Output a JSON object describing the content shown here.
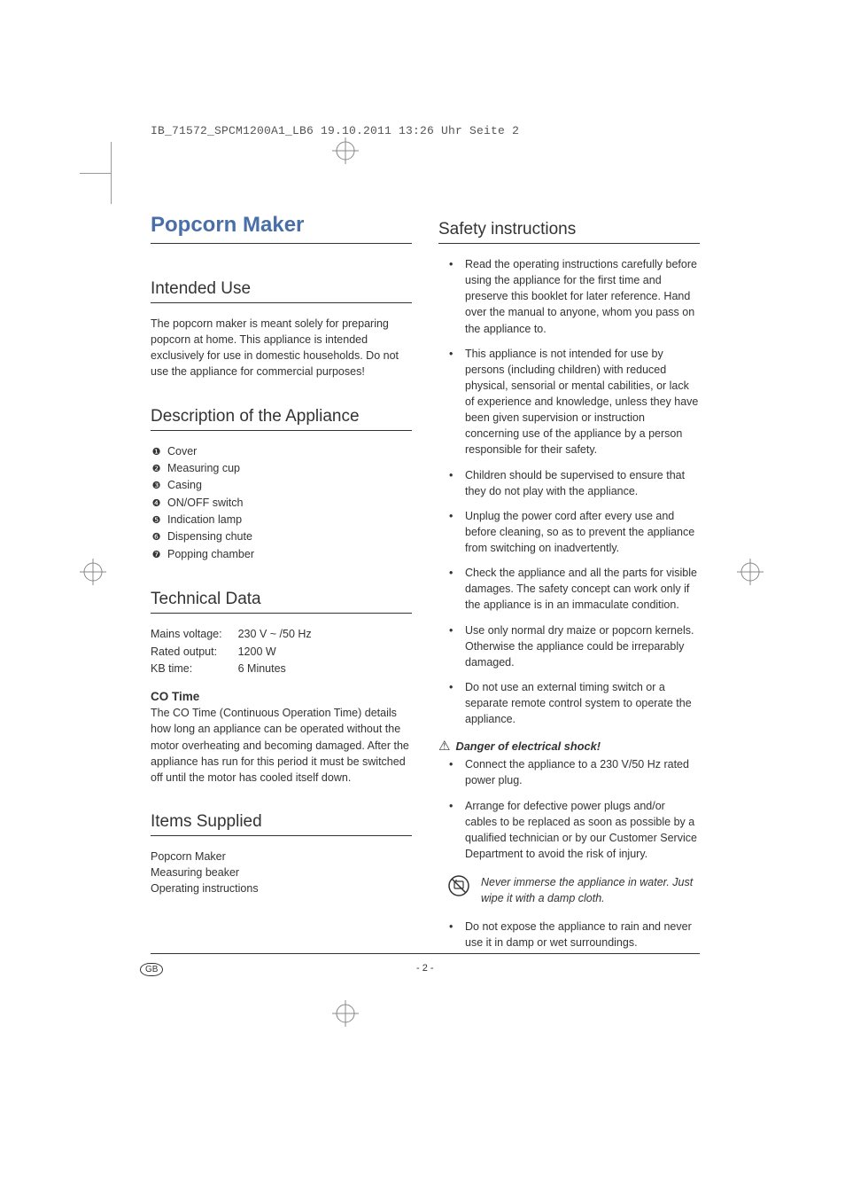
{
  "header_line": "IB_71572_SPCM1200A1_LB6  19.10.2011  13:26 Uhr  Seite 2",
  "title": "Popcorn Maker",
  "left": {
    "intended_use": {
      "heading": "Intended Use",
      "body": "The popcorn maker is meant solely for preparing popcorn at home. This appliance is intended exclusively for use in domestic households. Do not use the appliance for commercial purposes!"
    },
    "description": {
      "heading": "Description of the Appliance",
      "items": [
        "Cover",
        "Measuring cup",
        "Casing",
        "ON/OFF switch",
        "Indication lamp",
        "Dispensing chute",
        "Popping chamber"
      ],
      "markers": [
        "❶",
        "❷",
        "❸",
        "❹",
        "❺",
        "❻",
        "❼"
      ]
    },
    "technical": {
      "heading": "Technical Data",
      "rows": [
        {
          "label": "Mains voltage:",
          "value": "230 V ~ /50 Hz"
        },
        {
          "label": "Rated output:",
          "value": "1200 W"
        },
        {
          "label": "KB time:",
          "value": "6 Minutes"
        }
      ],
      "co_heading": "CO Time",
      "co_body": "The CO Time (Continuous Operation Time) details how long an appliance can be operated without the motor overheating and becoming damaged. After the appliance has run for this period it must be switched off until the motor has cooled itself down."
    },
    "supplied": {
      "heading": "Items Supplied",
      "lines": [
        "Popcorn Maker",
        "Measuring beaker",
        "Operating instructions"
      ]
    }
  },
  "right": {
    "heading": "Safety instructions",
    "bullets": [
      "Read the operating instructions carefully before using the appliance for the first time and  preserve this booklet for later reference. Hand over the manual to anyone, whom you pass on the appliance to.",
      "This appliance is not intended for use by persons (including children) with reduced physical, sensorial or mental cabilities, or lack of experience and knowledge, unless they have been given supervision or instruction concerning use of the appliance by a person responsible for their safety.",
      "Children should be supervised to ensure that they do not play with the appliance.",
      "Unplug the power cord after every use and before cleaning, so as to prevent the appliance from switching on inadvertently.",
      "Check the appliance and all the parts for visible damages. The safety concept can work only if the appliance is in an immaculate condition.",
      "Use only normal dry maize or popcorn kernels. Otherwise the appliance could be irreparably damaged.",
      "Do not use an external timing switch or a separate remote control system to operate the appliance."
    ],
    "danger_heading": "Danger of electrical shock!",
    "danger_bullets": [
      "Connect the appliance to a 230 V/50 Hz rated power plug.",
      "Arrange for defective power plugs and/or cables to be replaced as soon as possible by a qualified technician or by our Customer Service Department to avoid the risk of injury."
    ],
    "no_water_msg": "Never immerse the appliance in water. Just wipe it with a damp cloth.",
    "last_bullets": [
      "Do not expose the appliance to rain and never use it in damp or wet surroundings."
    ]
  },
  "footer": {
    "lang": "GB",
    "page": "- 2 -"
  },
  "colors": {
    "title": "#4a6fa8",
    "text": "#333333",
    "rule": "#333333"
  }
}
